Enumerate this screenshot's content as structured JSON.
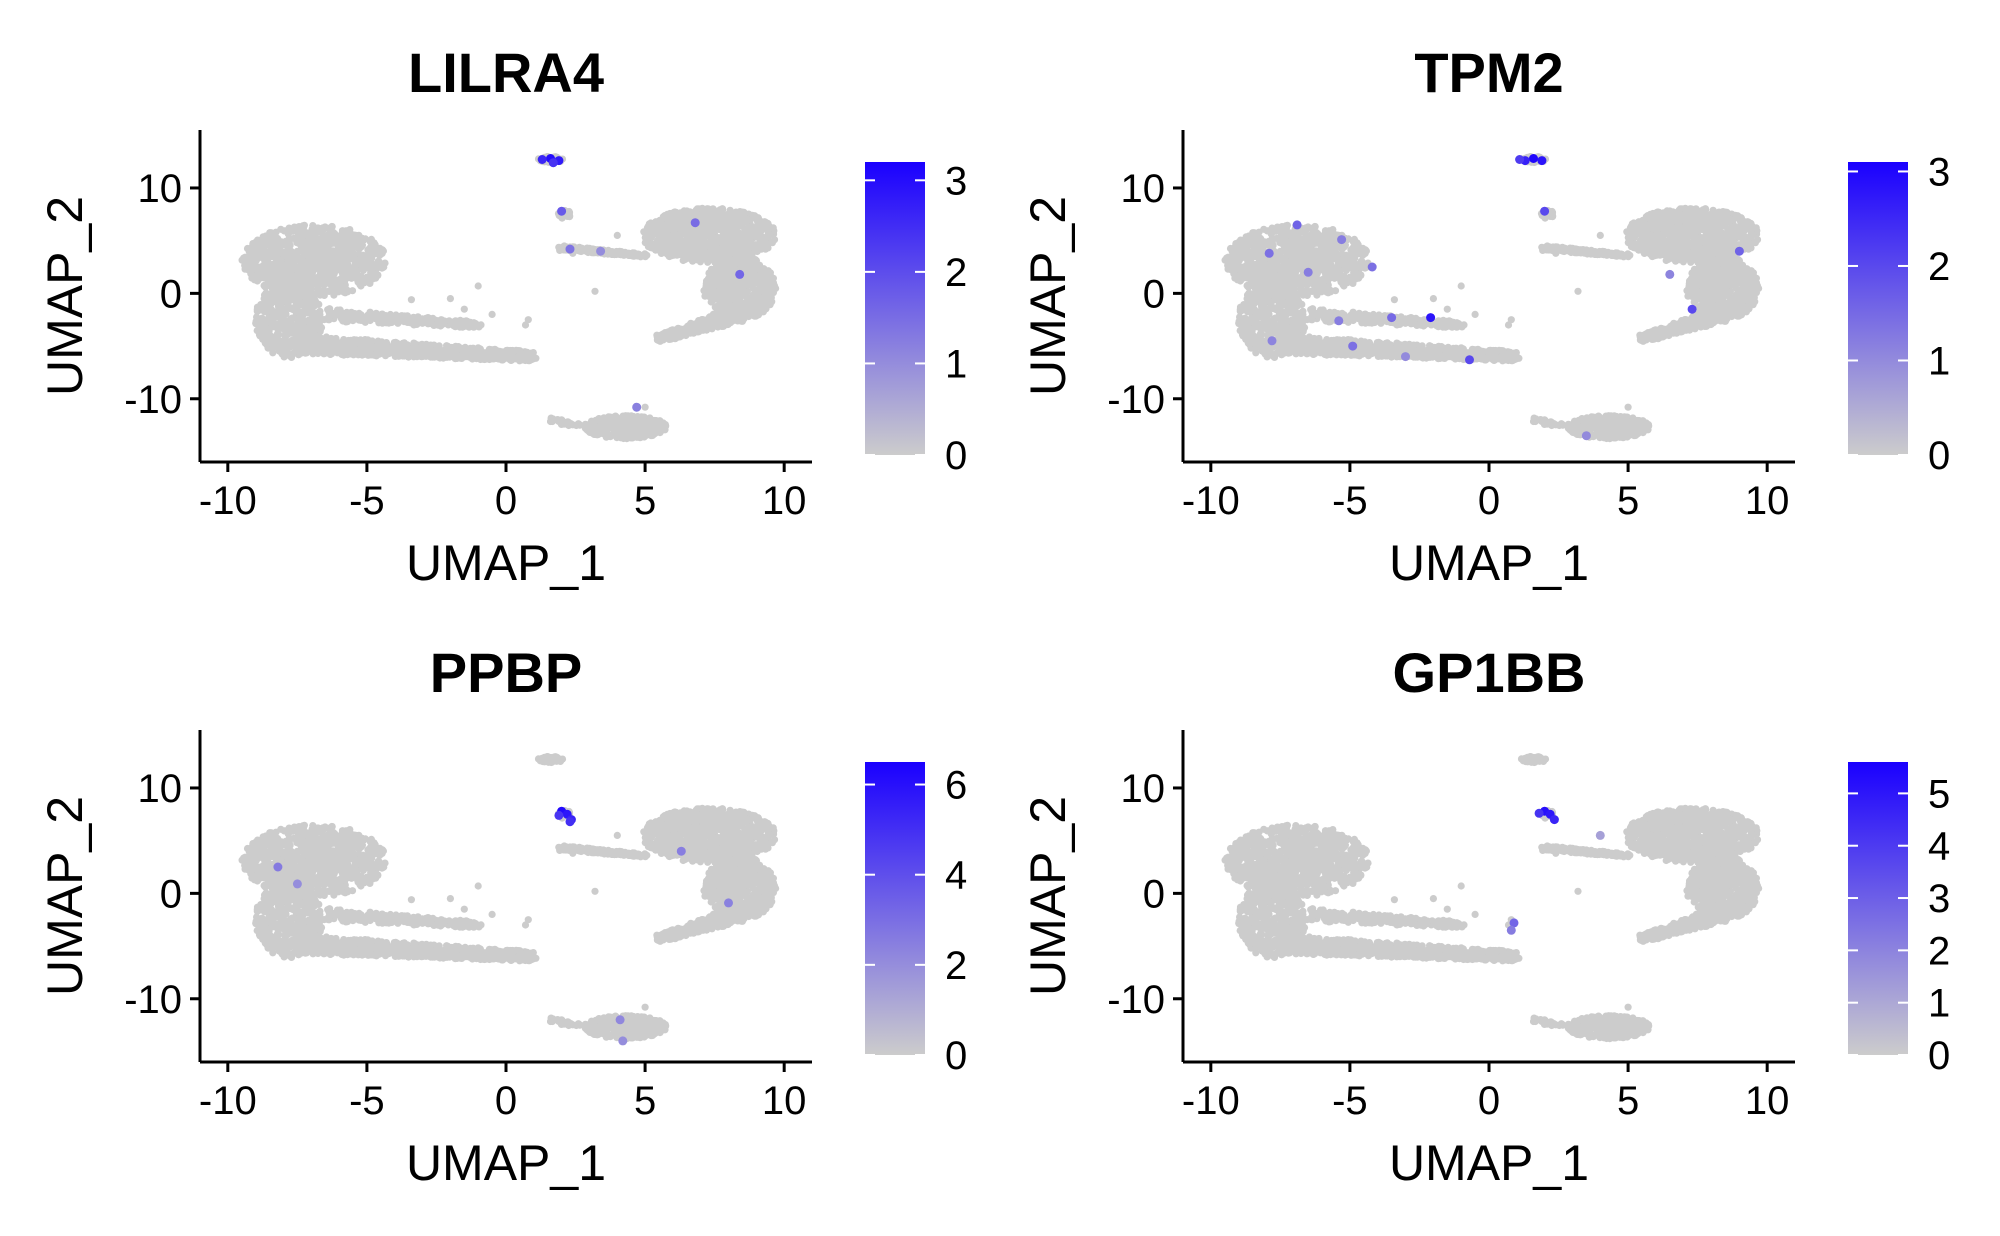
{
  "chart_data": [
    {
      "type": "scatter",
      "title": "LILRA4",
      "xlabel": "UMAP_1",
      "ylabel": "UMAP_2",
      "xlim": [
        -11,
        11
      ],
      "ylim": [
        -16,
        15.5
      ],
      "xticks": [
        "-10",
        "-5",
        "0",
        "5",
        "10"
      ],
      "yticks": [
        "-10",
        "0",
        "10"
      ],
      "colorbar": {
        "min": 0,
        "max": 3.2,
        "ticks": [
          "0",
          "1",
          "2",
          "3"
        ],
        "low_color": "#cccccc",
        "high_color": "#1a00ff"
      },
      "highlights": [
        {
          "x": 1.6,
          "y": 12.8,
          "value": 3.0
        },
        {
          "x": 1.3,
          "y": 12.7,
          "value": 2.6
        },
        {
          "x": 1.9,
          "y": 12.6,
          "value": 2.8
        },
        {
          "x": 1.7,
          "y": 12.4,
          "value": 2.4
        },
        {
          "x": 2.0,
          "y": 7.8,
          "value": 1.8
        },
        {
          "x": 2.3,
          "y": 4.2,
          "value": 1.4
        },
        {
          "x": 6.8,
          "y": 6.7,
          "value": 1.5
        },
        {
          "x": 8.4,
          "y": 1.8,
          "value": 1.6
        },
        {
          "x": 3.4,
          "y": 4.0,
          "value": 1.0
        },
        {
          "x": 4.7,
          "y": -10.8,
          "value": 1.2
        }
      ]
    },
    {
      "type": "scatter",
      "title": "TPM2",
      "xlabel": "UMAP_1",
      "ylabel": "UMAP_2",
      "xlim": [
        -11,
        11
      ],
      "ylim": [
        -16,
        15.5
      ],
      "xticks": [
        "-10",
        "-5",
        "0",
        "5",
        "10"
      ],
      "yticks": [
        "-10",
        "0",
        "10"
      ],
      "colorbar": {
        "min": 0,
        "max": 3.1,
        "ticks": [
          "0",
          "1",
          "2",
          "3"
        ],
        "low_color": "#cccccc",
        "high_color": "#1a00ff"
      },
      "highlights": [
        {
          "x": 1.6,
          "y": 12.8,
          "value": 3.0
        },
        {
          "x": 1.3,
          "y": 12.6,
          "value": 2.6
        },
        {
          "x": 1.9,
          "y": 12.6,
          "value": 2.8
        },
        {
          "x": 1.1,
          "y": 12.7,
          "value": 2.2
        },
        {
          "x": 2.0,
          "y": 7.8,
          "value": 2.0
        },
        {
          "x": -7.9,
          "y": 3.8,
          "value": 1.4
        },
        {
          "x": -6.9,
          "y": 6.5,
          "value": 1.6
        },
        {
          "x": -5.3,
          "y": 5.1,
          "value": 1.2
        },
        {
          "x": -4.2,
          "y": 2.5,
          "value": 1.4
        },
        {
          "x": -6.5,
          "y": 2.0,
          "value": 1.2
        },
        {
          "x": -3.5,
          "y": -2.3,
          "value": 1.5
        },
        {
          "x": -2.1,
          "y": -2.3,
          "value": 2.8
        },
        {
          "x": -5.4,
          "y": -2.6,
          "value": 1.2
        },
        {
          "x": -4.9,
          "y": -5.0,
          "value": 1.4
        },
        {
          "x": -7.8,
          "y": -4.5,
          "value": 1.1
        },
        {
          "x": -0.7,
          "y": -6.3,
          "value": 2.0
        },
        {
          "x": -3.0,
          "y": -6.0,
          "value": 1.0
        },
        {
          "x": 6.5,
          "y": 1.8,
          "value": 1.1
        },
        {
          "x": 7.3,
          "y": -1.5,
          "value": 2.0
        },
        {
          "x": 9.0,
          "y": 4.0,
          "value": 1.6
        },
        {
          "x": 3.5,
          "y": -13.5,
          "value": 1.0
        }
      ]
    },
    {
      "type": "scatter",
      "title": "PPBP",
      "xlabel": "UMAP_1",
      "ylabel": "UMAP_2",
      "xlim": [
        -11,
        11
      ],
      "ylim": [
        -16,
        15.5
      ],
      "xticks": [
        "-10",
        "-5",
        "0",
        "5",
        "10"
      ],
      "yticks": [
        "-10",
        "0",
        "10"
      ],
      "colorbar": {
        "min": 0,
        "max": 6.5,
        "ticks": [
          "0",
          "2",
          "4",
          "6"
        ],
        "low_color": "#cccccc",
        "high_color": "#1a00ff"
      },
      "highlights": [
        {
          "x": 2.0,
          "y": 7.8,
          "value": 6.2
        },
        {
          "x": 2.2,
          "y": 7.5,
          "value": 5.8
        },
        {
          "x": 2.35,
          "y": 7.0,
          "value": 5.4
        },
        {
          "x": 1.9,
          "y": 7.4,
          "value": 4.8
        },
        {
          "x": 2.3,
          "y": 6.8,
          "value": 5.0
        },
        {
          "x": -8.2,
          "y": 2.5,
          "value": 2.6
        },
        {
          "x": -7.5,
          "y": 0.9,
          "value": 2.0
        },
        {
          "x": 6.3,
          "y": 4.0,
          "value": 2.5
        },
        {
          "x": 8.0,
          "y": -0.9,
          "value": 2.4
        },
        {
          "x": 4.1,
          "y": -12.0,
          "value": 2.2
        },
        {
          "x": 4.2,
          "y": -14.0,
          "value": 2.0
        }
      ]
    },
    {
      "type": "scatter",
      "title": "GP1BB",
      "xlabel": "UMAP_1",
      "ylabel": "UMAP_2",
      "xlim": [
        -11,
        11
      ],
      "ylim": [
        -16,
        15.5
      ],
      "xticks": [
        "-10",
        "-5",
        "0",
        "5",
        "10"
      ],
      "yticks": [
        "-10",
        "0",
        "10"
      ],
      "colorbar": {
        "min": 0,
        "max": 5.6,
        "ticks": [
          "0",
          "1",
          "2",
          "3",
          "4",
          "5"
        ],
        "low_color": "#cccccc",
        "high_color": "#1a00ff"
      },
      "highlights": [
        {
          "x": 2.0,
          "y": 7.8,
          "value": 5.2
        },
        {
          "x": 2.2,
          "y": 7.5,
          "value": 5.0
        },
        {
          "x": 2.35,
          "y": 7.0,
          "value": 4.6
        },
        {
          "x": 1.8,
          "y": 7.6,
          "value": 4.2
        },
        {
          "x": 0.9,
          "y": -2.8,
          "value": 2.8
        },
        {
          "x": 0.8,
          "y": -3.5,
          "value": 2.2
        },
        {
          "x": 4.0,
          "y": 5.5,
          "value": 1.2
        }
      ]
    }
  ]
}
